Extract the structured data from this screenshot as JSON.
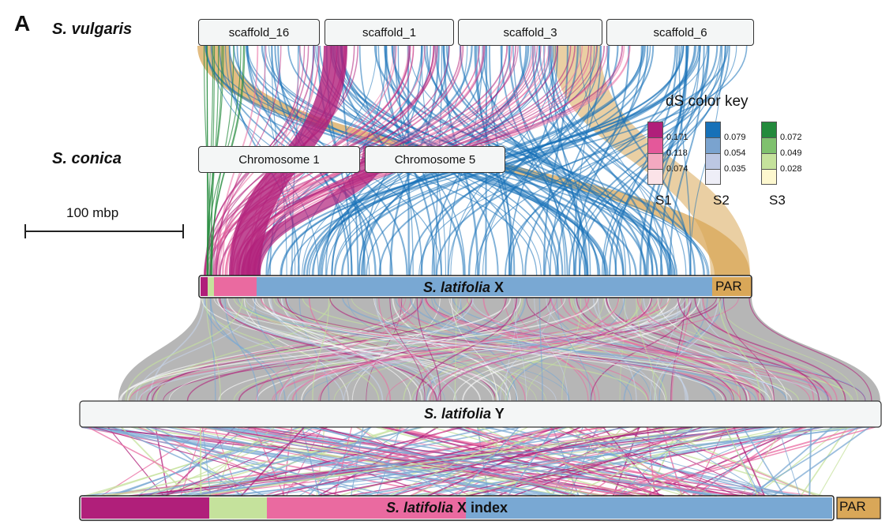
{
  "panel_letter": "A",
  "species": {
    "vulgaris": "S. vulgaris",
    "conica": "S. conica"
  },
  "scaffolds": [
    "scaffold_16",
    "scaffold_1",
    "scaffold_3",
    "scaffold_6"
  ],
  "chromosomes": [
    "Chromosome 1",
    "Chromosome 5"
  ],
  "scale_bar": "100 mbp",
  "color_key": {
    "title": "dS color key",
    "groups": [
      {
        "name": "S1",
        "colors": [
          "#b01f7a",
          "#e4589a",
          "#f3a9c0",
          "#fbe3e8"
        ],
        "values": [
          "0.171",
          "0.118",
          "0.074"
        ]
      },
      {
        "name": "S2",
        "colors": [
          "#1771b8",
          "#7aa3cf",
          "#bcc7e3",
          "#eeeef7"
        ],
        "values": [
          "0.079",
          "0.054",
          "0.035"
        ]
      },
      {
        "name": "S3",
        "colors": [
          "#238a3c",
          "#7fc16e",
          "#c5e29c",
          "#fdf8cf"
        ],
        "values": [
          "0.072",
          "0.049",
          "0.028"
        ]
      }
    ]
  },
  "tracks": {
    "x": {
      "species": "S. latifolia",
      "suffix": "X",
      "par": "PAR"
    },
    "y": {
      "species": "S. latifolia",
      "suffix": "Y"
    },
    "x_index": {
      "species": "S. latifolia",
      "suffix": "X index",
      "par": "PAR"
    }
  },
  "colors": {
    "stratum1": "#b01f7a",
    "stratum1_pink": "#ea6aa0",
    "stratum2": "#1771b8",
    "stratum2_light": "#79a8d3",
    "stratum3": "#238a3c",
    "stratum3_light": "#c5e29c",
    "par": "#d9a758",
    "x_to_y_fill": "#a9a9a9"
  }
}
